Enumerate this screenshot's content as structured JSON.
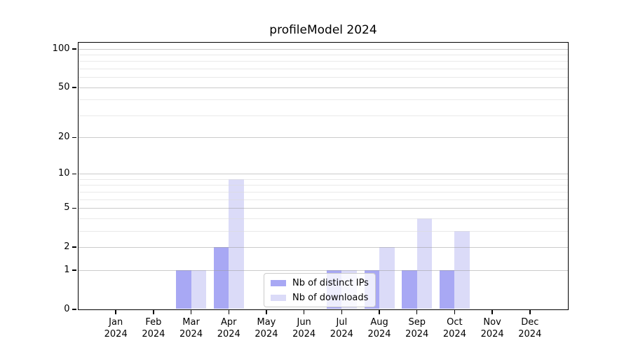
{
  "chart_data": {
    "type": "bar",
    "title": "profileModel 2024",
    "categories": [
      "Jan",
      "Feb",
      "Mar",
      "Apr",
      "May",
      "Jun",
      "Jul",
      "Aug",
      "Sep",
      "Oct",
      "Nov",
      "Dec"
    ],
    "x_tick_year": "2024",
    "series": [
      {
        "name": "Nb of distinct IPs",
        "color": "#a8a8f4",
        "values": [
          0,
          0,
          1,
          2,
          0,
          0,
          1,
          1,
          1,
          1,
          0,
          0
        ]
      },
      {
        "name": "Nb of downloads",
        "color": "#dbdbf8",
        "values": [
          0,
          0,
          1,
          9,
          0,
          0,
          1,
          2,
          4,
          3,
          0,
          0
        ]
      }
    ],
    "y_axis": {
      "scale": "log1p",
      "major_ticks": [
        0,
        1,
        2,
        5,
        10,
        20,
        50,
        100
      ],
      "minor_gridlines": [
        3,
        4,
        6,
        7,
        8,
        9,
        30,
        40,
        60,
        70,
        80,
        90
      ],
      "ylim": [
        0,
        112
      ]
    },
    "legend": {
      "location": "lower center"
    },
    "grid": true
  },
  "colors": {
    "background": "#ffffff",
    "spine": "#000000",
    "text": "#000000",
    "grid_major": "#d2d2d2",
    "grid_minor": "#ebebeb"
  }
}
